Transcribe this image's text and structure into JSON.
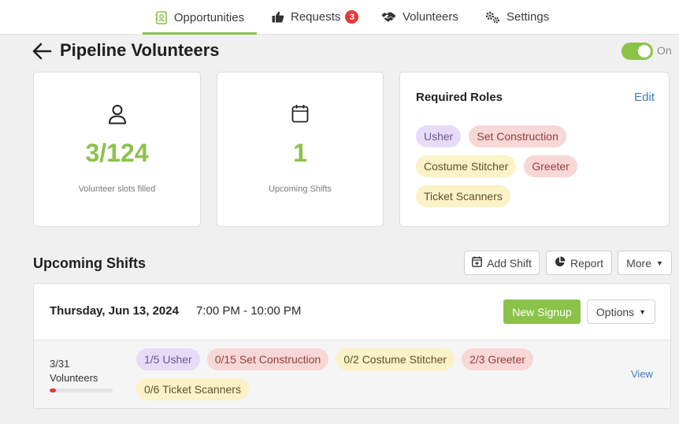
{
  "nav": {
    "tabs": [
      {
        "label": "Opportunities",
        "icon": "contact-card-icon",
        "active": true
      },
      {
        "label": "Requests",
        "icon": "thumbs-up-icon",
        "badge": "3"
      },
      {
        "label": "Volunteers",
        "icon": "handshake-icon"
      },
      {
        "label": "Settings",
        "icon": "gears-icon"
      }
    ]
  },
  "header": {
    "title": "Pipeline Volunteers",
    "toggle_label": "On",
    "toggle_on": true
  },
  "stats": {
    "slots": {
      "value": "3/124",
      "caption": "Volunteer slots filled"
    },
    "shifts": {
      "value": "1",
      "caption": "Upcoming Shifts"
    }
  },
  "required_roles": {
    "title": "Required Roles",
    "edit_label": "Edit",
    "roles": [
      {
        "label": "Usher",
        "color": "purple"
      },
      {
        "label": "Set Construction",
        "color": "red"
      },
      {
        "label": "Costume Stitcher",
        "color": "yellow"
      },
      {
        "label": "Greeter",
        "color": "red"
      },
      {
        "label": "Ticket Scanners",
        "color": "yellow"
      }
    ]
  },
  "upcoming": {
    "title": "Upcoming Shifts",
    "add_shift_label": "Add Shift",
    "report_label": "Report",
    "more_label": "More"
  },
  "shift": {
    "date": "Thursday, Jun 13, 2024",
    "time": "7:00 PM - 10:00 PM",
    "new_signup_label": "New Signup",
    "options_label": "Options",
    "volunteer_count": "3/31",
    "volunteer_label": "Volunteers",
    "progress_fraction": 0.097,
    "roles": [
      {
        "label": "1/5 Usher",
        "color": "purple"
      },
      {
        "label": "0/15 Set Construction",
        "color": "red"
      },
      {
        "label": "0/2 Costume Stitcher",
        "color": "yellow"
      },
      {
        "label": "2/3 Greeter",
        "color": "red"
      },
      {
        "label": "0/6 Ticket Scanners",
        "color": "yellow"
      }
    ],
    "view_label": "View"
  },
  "colors": {
    "accent_green": "#8bc34a",
    "link_blue": "#3b7bbf",
    "badge_red": "#e53935"
  }
}
